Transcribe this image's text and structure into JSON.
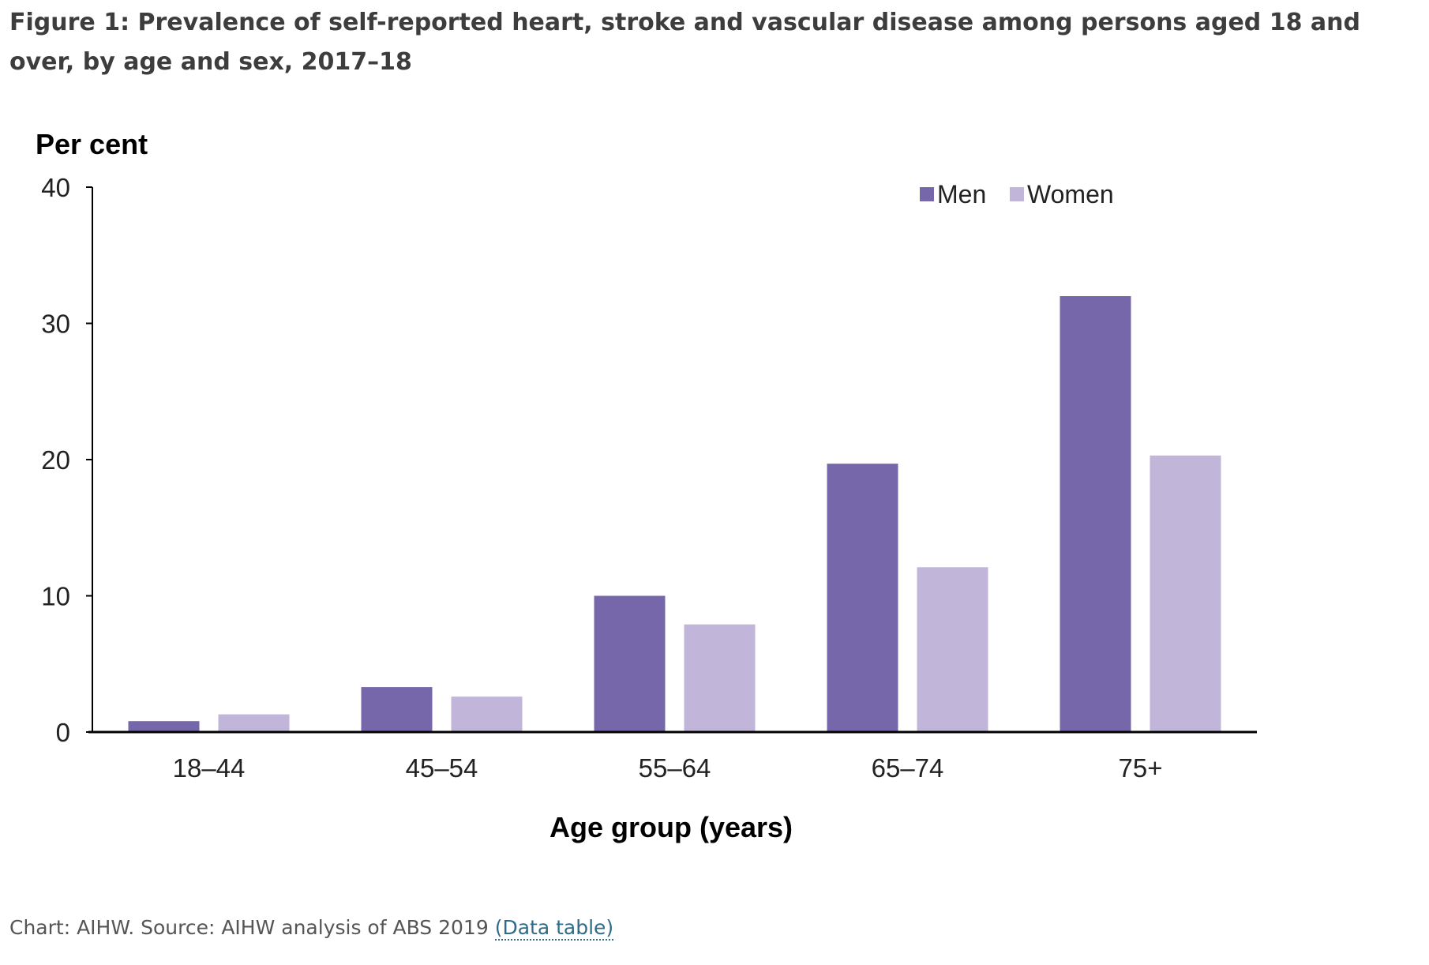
{
  "figure": {
    "title": "Figure 1: Prevalence of self-reported heart, stroke and vascular disease among persons aged 18 and over, by age and sex, 2017–18",
    "source_text": "Chart: AIHW. Source: AIHW analysis of ABS 2019 ",
    "data_table_link": "(Data table)"
  },
  "colors": {
    "men": "#7667aa",
    "women": "#c1b6da",
    "axis": "#000000",
    "link": "#2e6c8a"
  },
  "chart_data": {
    "type": "bar",
    "title": "",
    "xlabel": "Age group (years)",
    "ylabel": "Per cent",
    "categories": [
      "18–44",
      "45–54",
      "55–64",
      "65–74",
      "75+"
    ],
    "series": [
      {
        "name": "Men",
        "values": [
          0.8,
          3.3,
          10.0,
          19.7,
          32.0
        ]
      },
      {
        "name": "Women",
        "values": [
          1.3,
          2.6,
          7.9,
          12.1,
          20.3
        ]
      }
    ],
    "ylim": [
      0,
      40
    ],
    "yticks": [
      "0",
      "10",
      "20",
      "30",
      "40"
    ],
    "grid": false,
    "legend_position": "top-right"
  }
}
